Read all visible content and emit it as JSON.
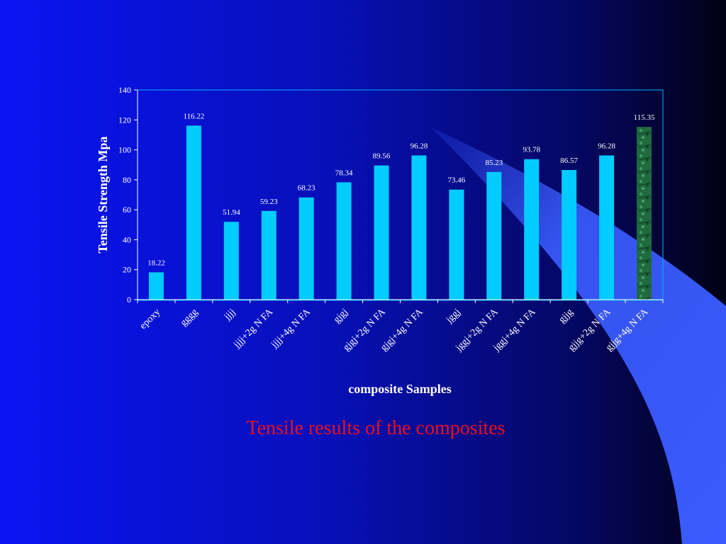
{
  "slide": {
    "caption": "Tensile results of the composites",
    "colors": {
      "background_left": "#0a14f0",
      "background_right": "#020216",
      "ribbon": "#3a5cff",
      "bar": "#00ccff",
      "highlight_bar": "#1f6b3f",
      "caption": "#e8101c"
    }
  },
  "chart_data": {
    "type": "bar",
    "title": "",
    "xlabel": "composite Samples",
    "ylabel": "Tensile Strength Mpa",
    "ylim": [
      0,
      140
    ],
    "yticks": [
      0,
      20,
      40,
      60,
      80,
      100,
      120,
      140
    ],
    "grid": false,
    "categories": [
      "epoxy",
      "gggg",
      "jjjj",
      "jjjj+2g N FA",
      "jjjj+4g N FA",
      "gjgj",
      "gjgj+2g N FA",
      "gjgj+4g N FA",
      "jggj",
      "jggj+2g N FA",
      "jggj+4g N FA",
      "gjjg",
      "gjjg+2g N FA",
      "gjjg+4g N FA"
    ],
    "values": [
      18.22,
      116.22,
      51.94,
      59.23,
      68.23,
      78.34,
      89.56,
      96.28,
      73.46,
      85.23,
      93.78,
      86.57,
      96.28,
      115.35
    ],
    "value_labels": [
      "18.22",
      "116.22",
      "51.94",
      "59.23",
      "68.23",
      "78.34",
      "89.56",
      "96.28",
      "73.46",
      "85.23",
      "93.78",
      "86.57",
      "96.28",
      "115.35"
    ],
    "highlight_index": 13
  }
}
